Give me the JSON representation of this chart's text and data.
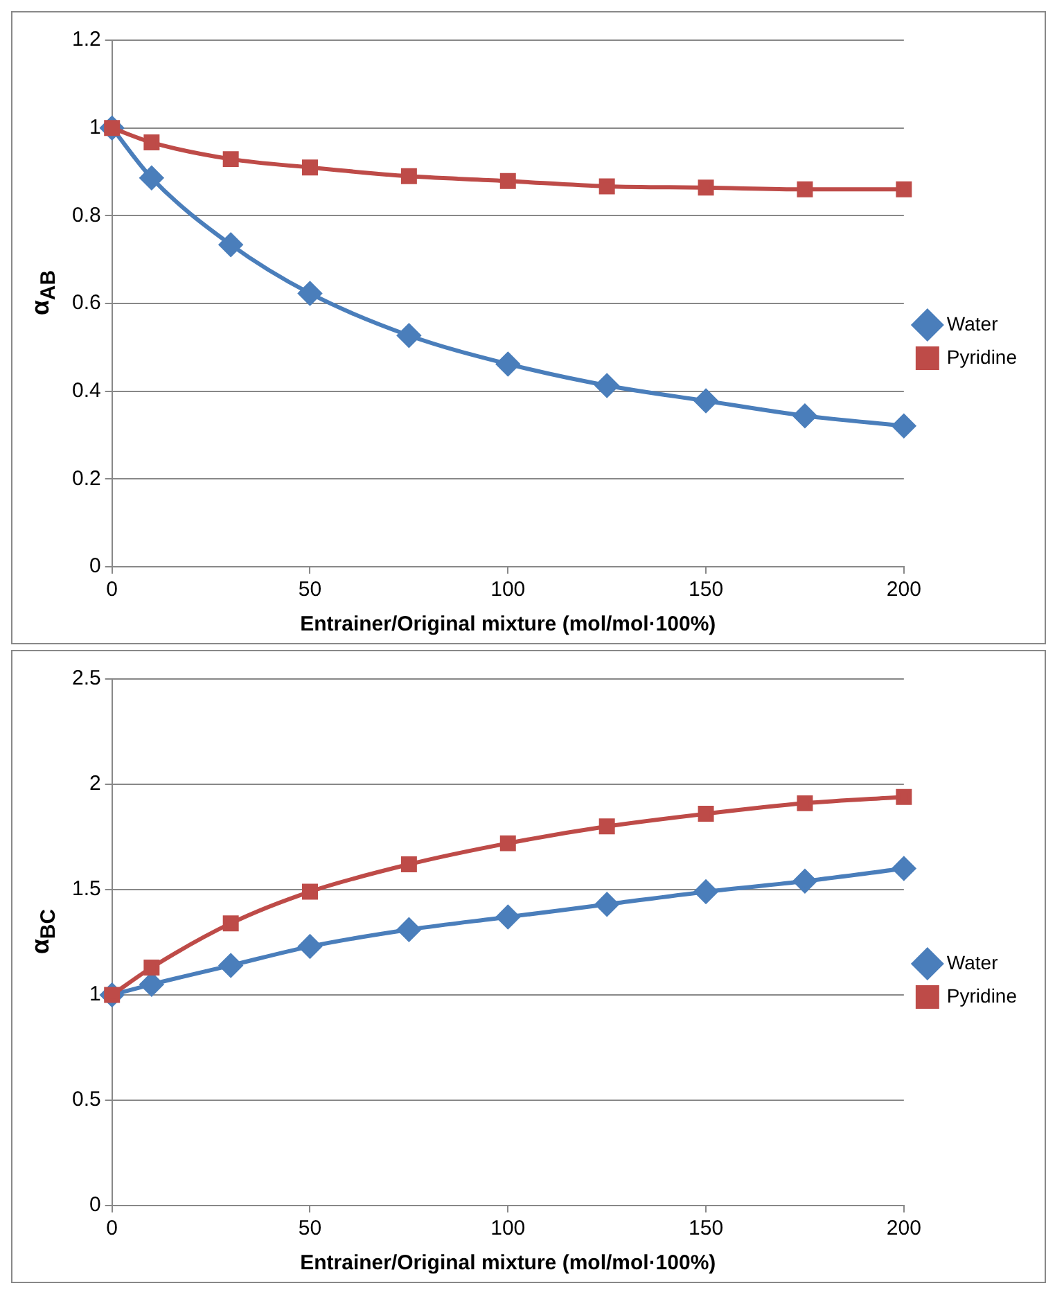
{
  "chart_data": [
    {
      "type": "line",
      "xlabel": "Entrainer/Original mixture (mol/mol·100%)",
      "ylabel": "α$_{AB}$",
      "x": [
        0,
        10,
        30,
        50,
        75,
        100,
        125,
        150,
        175,
        200
      ],
      "xlim": [
        0,
        200
      ],
      "xticks": [
        0,
        50,
        100,
        150,
        200
      ],
      "ylim": [
        0,
        1.2
      ],
      "yticks": [
        0,
        0.2,
        0.4,
        0.6,
        0.8,
        1,
        1.2
      ],
      "grid": "y",
      "legend": "right",
      "series": [
        {
          "name": "Water",
          "color": "#4a7ebb",
          "marker": "diamond",
          "values": [
            1.0,
            0.886,
            0.734,
            0.623,
            0.527,
            0.462,
            0.413,
            0.378,
            0.344,
            0.321
          ]
        },
        {
          "name": "Pyridine",
          "color": "#be4b48",
          "marker": "square",
          "values": [
            1.0,
            0.967,
            0.929,
            0.91,
            0.89,
            0.879,
            0.867,
            0.864,
            0.86,
            0.86
          ]
        }
      ]
    },
    {
      "type": "line",
      "xlabel": "Entrainer/Original mixture (mol/mol·100%)",
      "ylabel": "α$_{BC}$",
      "x": [
        0,
        10,
        30,
        50,
        75,
        100,
        125,
        150,
        175,
        200
      ],
      "xlim": [
        0,
        200
      ],
      "xticks": [
        0,
        50,
        100,
        150,
        200
      ],
      "ylim": [
        0,
        2.5
      ],
      "yticks": [
        0,
        0.5,
        1,
        1.5,
        2,
        2.5
      ],
      "grid": "y",
      "legend": "right",
      "series": [
        {
          "name": "Water",
          "color": "#4a7ebb",
          "marker": "diamond",
          "values": [
            1.0,
            1.05,
            1.14,
            1.23,
            1.31,
            1.37,
            1.43,
            1.49,
            1.54,
            1.6
          ]
        },
        {
          "name": "Pyridine",
          "color": "#be4b48",
          "marker": "square",
          "values": [
            1.0,
            1.13,
            1.34,
            1.49,
            1.62,
            1.72,
            1.8,
            1.86,
            1.91,
            1.94
          ]
        }
      ]
    }
  ]
}
